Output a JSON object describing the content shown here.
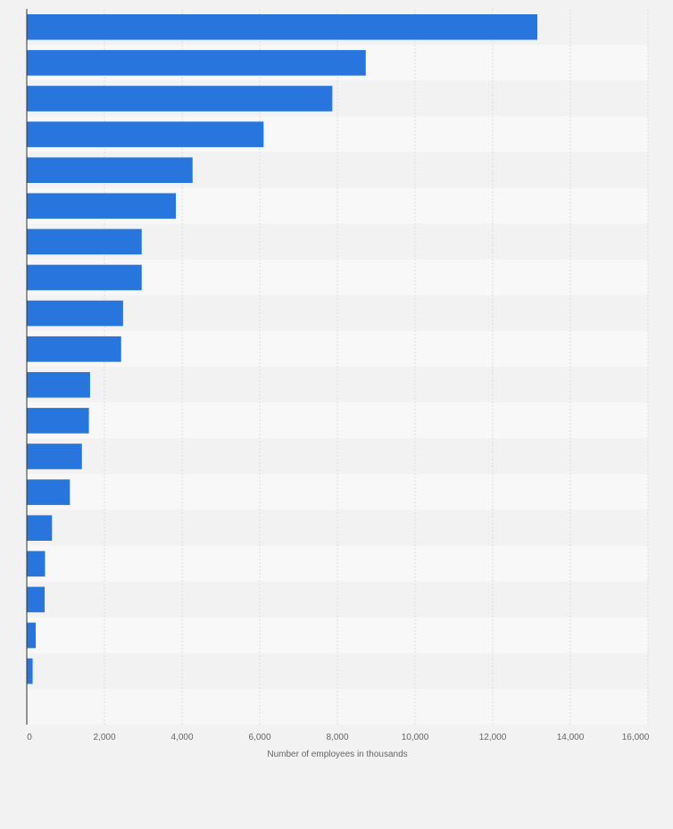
{
  "chart_data": {
    "type": "bar",
    "orientation": "horizontal",
    "title": "",
    "xlabel": "Number of employees in thousands",
    "ylabel": "",
    "xlim": [
      0,
      16000
    ],
    "x_ticks": [
      0,
      2000,
      4000,
      6000,
      8000,
      10000,
      12000,
      14000,
      16000
    ],
    "x_tick_labels": [
      "0",
      "2,000",
      "4,000",
      "6,000",
      "8,000",
      "10,000",
      "12,000",
      "14,000",
      "16,000"
    ],
    "grid": true,
    "legend": "none",
    "category_count": 19,
    "values": [
      13150,
      8730,
      7870,
      6100,
      4270,
      3840,
      2960,
      2960,
      2480,
      2430,
      1630,
      1600,
      1420,
      1110,
      650,
      470,
      460,
      230,
      150
    ],
    "bar_color": "#2876dd"
  }
}
